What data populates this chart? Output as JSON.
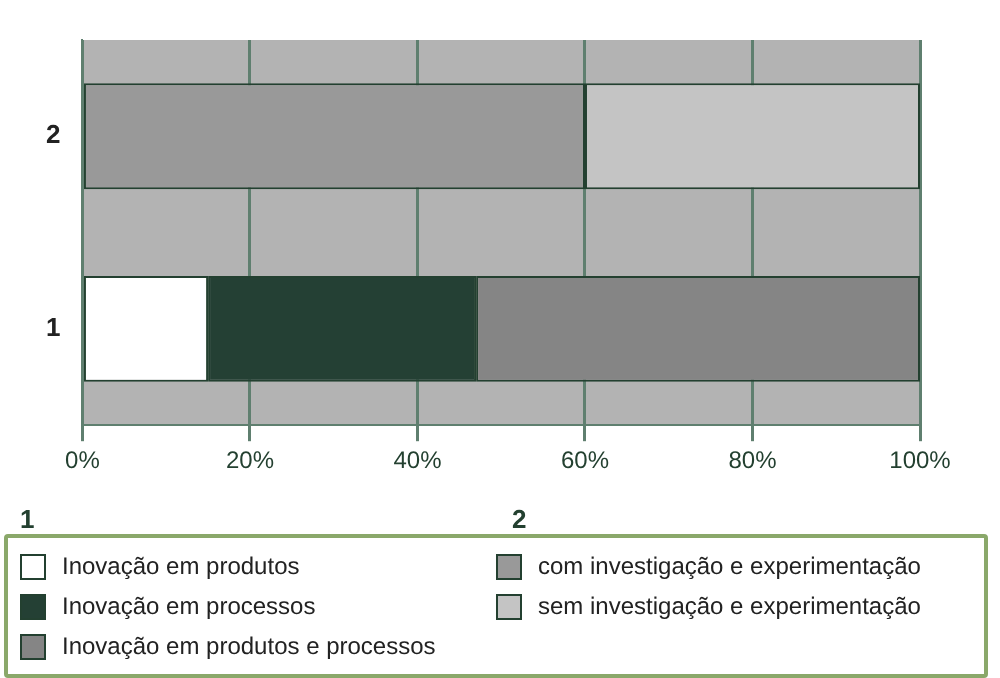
{
  "chart_data": {
    "type": "bar",
    "orientation": "horizontal",
    "stacked": true,
    "categories": [
      "2",
      "1"
    ],
    "series": [
      {
        "name": "Inovação em produtos",
        "color": "#ffffff",
        "values": [
          null,
          15
        ]
      },
      {
        "name": "Inovação em processos",
        "color": "#244034",
        "values": [
          null,
          32
        ]
      },
      {
        "name": "Inovação em produtos e processos",
        "color": "#858585",
        "values": [
          null,
          53
        ]
      },
      {
        "name": "com investigação e experimentação",
        "color": "#999999",
        "values": [
          60,
          null
        ]
      },
      {
        "name": "sem investigação e experimentação",
        "color": "#c4c4c4",
        "values": [
          40,
          null
        ]
      }
    ],
    "xlim": [
      0,
      100
    ],
    "xticks": [
      {
        "value": 0,
        "label": "0%"
      },
      {
        "value": 20,
        "label": "20%"
      },
      {
        "value": 40,
        "label": "40%"
      },
      {
        "value": 60,
        "label": "60%"
      },
      {
        "value": 80,
        "label": "80%"
      },
      {
        "value": 100,
        "label": "100%"
      }
    ],
    "grid": "x",
    "legend": "bottom"
  }
}
